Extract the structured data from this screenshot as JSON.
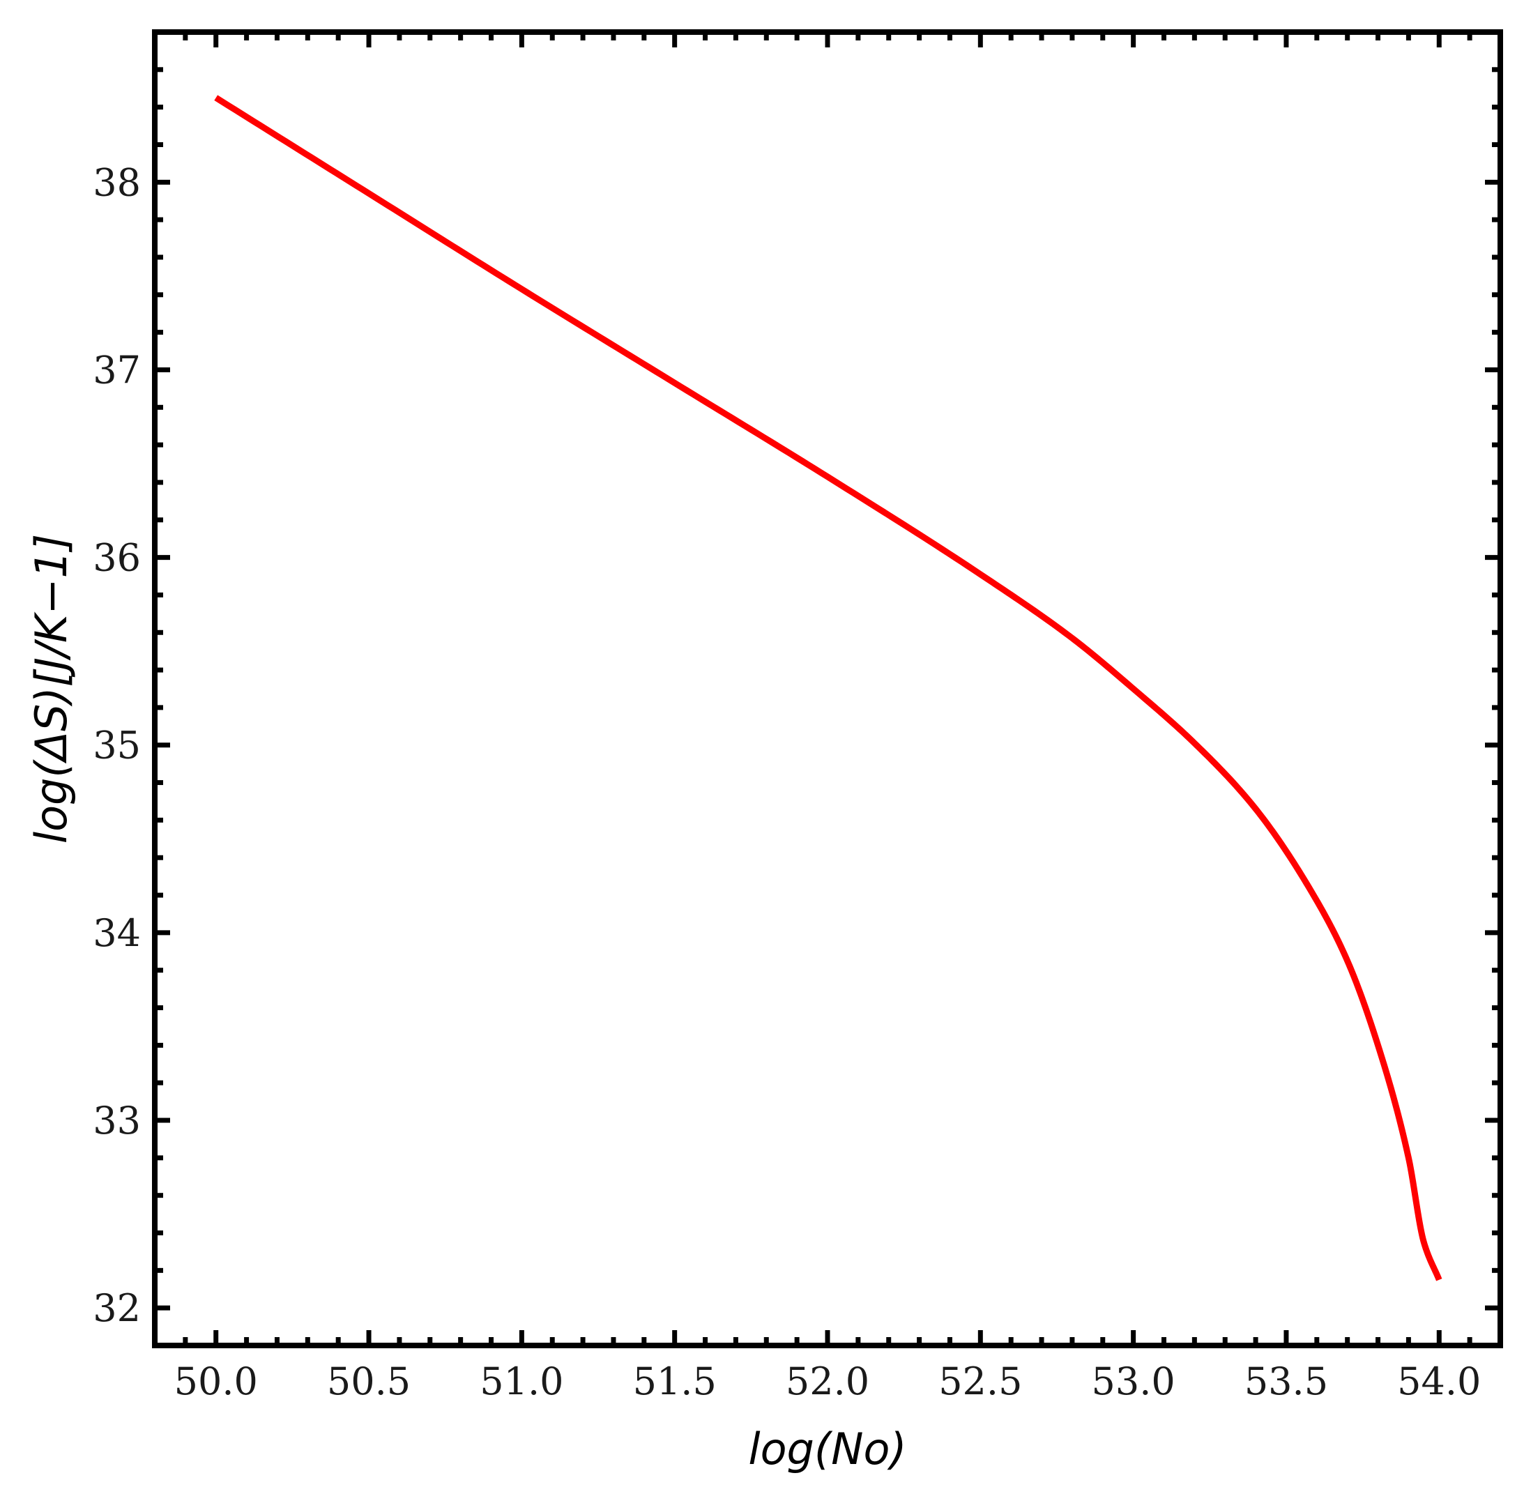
{
  "chart_data": {
    "type": "line",
    "title": "",
    "xlabel": "log(No)",
    "ylabel": "log(ΔS)[J/K−1]",
    "xlim": [
      49.8,
      54.2
    ],
    "ylim": [
      31.8,
      38.8
    ],
    "xticks": [
      50.0,
      50.5,
      51.0,
      51.5,
      52.0,
      52.5,
      53.0,
      53.5,
      54.0
    ],
    "xtick_labels": [
      "50.0",
      "50.5",
      "51.0",
      "51.5",
      "52.0",
      "52.5",
      "53.0",
      "53.5",
      "54.0"
    ],
    "yticks": [
      32,
      33,
      34,
      35,
      36,
      37,
      38
    ],
    "ytick_labels": [
      "32",
      "33",
      "34",
      "35",
      "36",
      "37",
      "38"
    ],
    "grid": false,
    "legend": "none",
    "series": [
      {
        "color": "#ff0000",
        "x": [
          50.0,
          50.5,
          51.0,
          51.5,
          52.0,
          52.5,
          52.8,
          53.0,
          53.2,
          53.4,
          53.6,
          53.7,
          53.8,
          53.9,
          53.95,
          54.0
        ],
        "y": [
          38.45,
          37.94,
          37.43,
          36.93,
          36.43,
          35.91,
          35.57,
          35.3,
          35.01,
          34.66,
          34.17,
          33.85,
          33.4,
          32.8,
          32.35,
          32.15
        ]
      }
    ]
  }
}
